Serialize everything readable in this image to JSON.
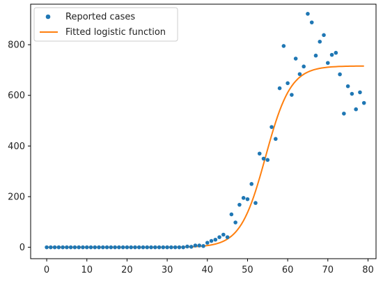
{
  "chart_data": {
    "type": "scatter",
    "title": "",
    "xlabel": "",
    "ylabel": "",
    "xlim": [
      -4,
      82
    ],
    "ylim": [
      -45,
      960
    ],
    "x_ticks": [
      0,
      10,
      20,
      30,
      40,
      50,
      60,
      70,
      80
    ],
    "y_ticks": [
      0,
      200,
      400,
      600,
      800
    ],
    "grid": false,
    "legend_position": "top-left",
    "colors": {
      "scatter": "#1f77b4",
      "line": "#ff7f0e",
      "axis": "#000000"
    },
    "series": [
      {
        "name": "Reported cases",
        "type": "scatter",
        "x": [
          0,
          1,
          2,
          3,
          4,
          5,
          6,
          7,
          8,
          9,
          10,
          11,
          12,
          13,
          14,
          15,
          16,
          17,
          18,
          19,
          20,
          21,
          22,
          23,
          24,
          25,
          26,
          27,
          28,
          29,
          30,
          31,
          32,
          33,
          34,
          35,
          36,
          37,
          38,
          39,
          40,
          41,
          42,
          43,
          44,
          45,
          46,
          47,
          48,
          49,
          50,
          51,
          52,
          53,
          54,
          55,
          56,
          57,
          58,
          59,
          60,
          61,
          62,
          63,
          64,
          65,
          66,
          67,
          68,
          69,
          70,
          71,
          72,
          73,
          74,
          75,
          76,
          77,
          78,
          79
        ],
        "y": [
          0,
          0,
          0,
          0,
          0,
          0,
          0,
          0,
          0,
          0,
          0,
          0,
          0,
          0,
          0,
          0,
          0,
          0,
          0,
          0,
          0,
          0,
          0,
          0,
          0,
          0,
          0,
          0,
          0,
          0,
          0,
          0,
          0,
          0,
          0,
          3,
          2,
          7,
          7,
          5,
          18,
          25,
          30,
          40,
          50,
          40,
          130,
          98,
          168,
          195,
          190,
          250,
          175,
          370,
          350,
          345,
          475,
          428,
          628,
          795,
          648,
          602,
          745,
          684,
          714,
          922,
          888,
          757,
          812,
          838,
          728,
          760,
          768,
          683,
          528,
          636,
          606,
          545,
          612,
          570
        ]
      },
      {
        "name": "Fitted logistic function",
        "type": "line",
        "model": "logistic",
        "L": 716,
        "k": 0.32,
        "x0": 54.5,
        "x_range": [
          0,
          79
        ]
      }
    ]
  }
}
